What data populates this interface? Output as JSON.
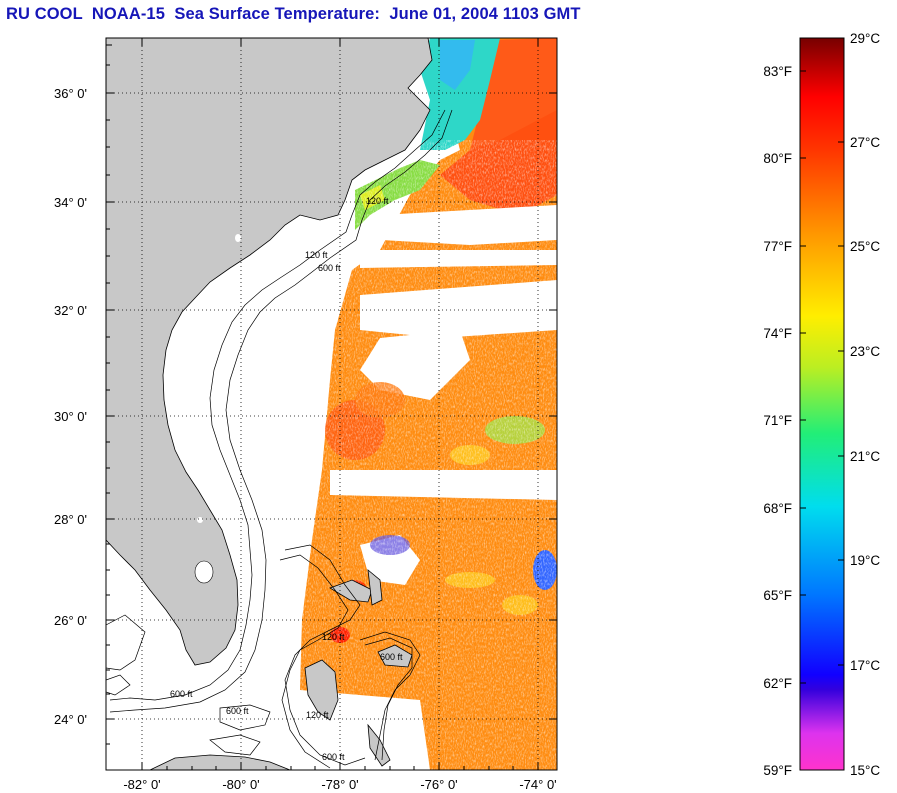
{
  "title": "RU COOL  NOAA-15  Sea Surface Temperature:  June 01, 2004 1103 GMT",
  "map": {
    "lat_ticks": [
      "36° 0'",
      "34° 0'",
      "32° 0'",
      "30° 0'",
      "28° 0'",
      "26° 0'",
      "24° 0'"
    ],
    "lon_ticks": [
      "-82° 0'",
      "-80° 0'",
      "-78° 0'",
      "-76° 0'",
      "-74° 0'"
    ],
    "contour_labels": [
      "120 ft",
      "600 ft"
    ],
    "colors": {
      "land": "#c8c8c8",
      "no_data": "#ffffff",
      "frame": "#000000"
    }
  },
  "colorbar": {
    "fahrenheit_labels": [
      "83°F",
      "80°F",
      "77°F",
      "74°F",
      "71°F",
      "68°F",
      "65°F",
      "62°F",
      "59°F"
    ],
    "celsius_labels": [
      "29°C",
      "27°C",
      "25°C",
      "23°C",
      "21°C",
      "19°C",
      "17°C",
      "15°C"
    ],
    "colors": [
      "#ff33cc",
      "#2200dd",
      "#0066ff",
      "#00ccee",
      "#22ee77",
      "#ffee00",
      "#ff9900",
      "#ff3300",
      "#ff0000",
      "#770000"
    ]
  }
}
